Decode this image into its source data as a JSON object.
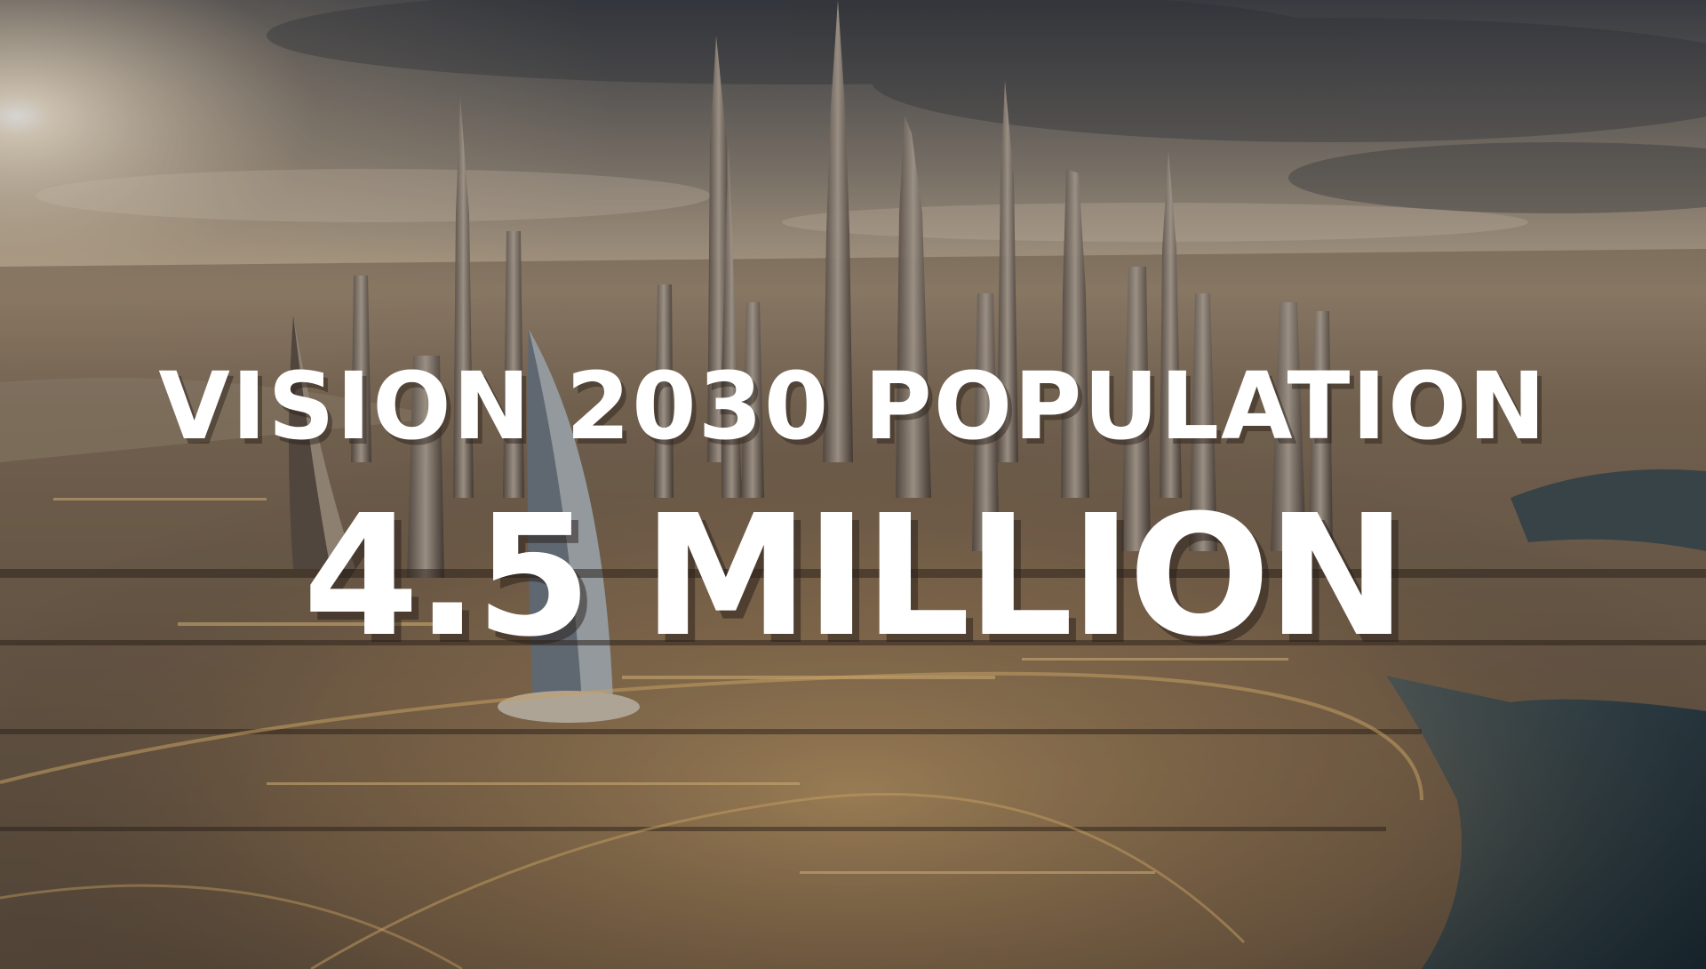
{
  "headline": "VISION 2030 POPULATION",
  "figure": "4.5 MILLION",
  "colors": {
    "text": "#ffffff",
    "sky_top": "#4a4d56",
    "sky_glow": "#e8d6bc",
    "city_light": "#f3c77a",
    "water": "#1e3440"
  }
}
